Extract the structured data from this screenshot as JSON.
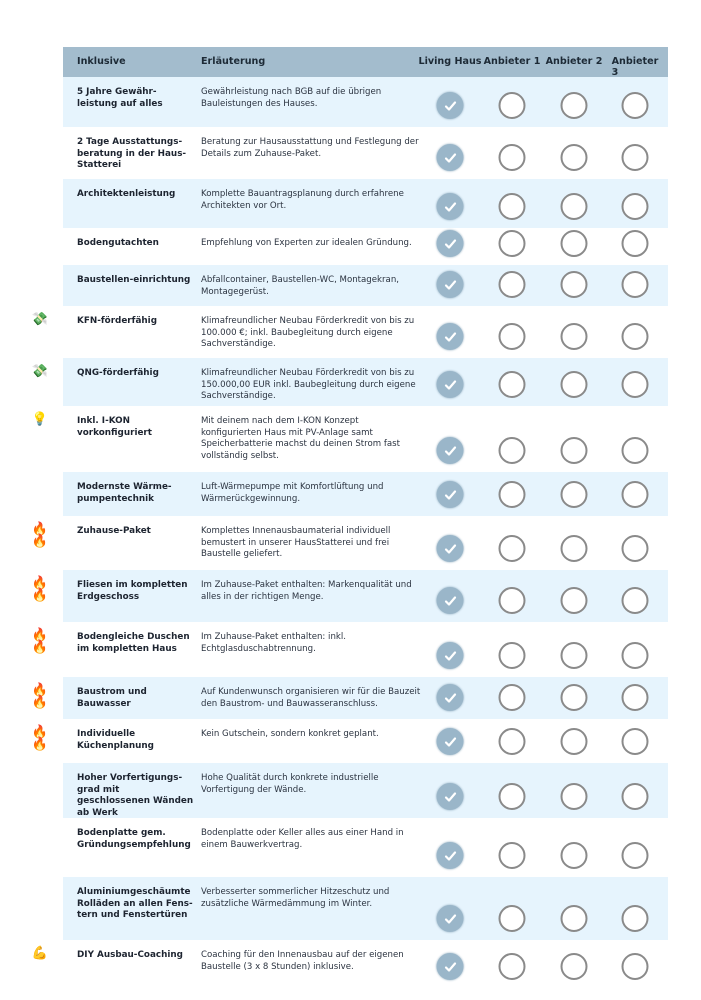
{
  "header": {
    "feature": "Inklusive",
    "description": "Erläuterung",
    "providers": [
      "Living Haus",
      "Anbieter 1",
      "Anbieter 2",
      "Anbieter 3"
    ]
  },
  "colors": {
    "header": "#a3bccd",
    "row_alt": "#e6f4fd",
    "check": "#9ab6c9"
  },
  "rows": [
    {
      "feature": "5 Jahre Gewähr-leistung auf alles",
      "description": "Gewährleistung nach BGB auf die übrigen Bauleistungen des Hauses.",
      "icon": "",
      "checks": [
        true,
        false,
        false,
        false
      ]
    },
    {
      "feature": "2 Tage Ausstattungs-beratung in der Haus-Statterei",
      "description": "Beratung zur Hausausstattung und Festlegung der Details zum Zuhause-Paket.",
      "icon": "",
      "checks": [
        true,
        false,
        false,
        false
      ]
    },
    {
      "feature": "Architektenleistung",
      "description": "Komplette Bauantragsplanung durch erfahrene Architekten vor Ort.",
      "icon": "",
      "checks": [
        true,
        false,
        false,
        false
      ]
    },
    {
      "feature": "Bodengutachten",
      "description": "Empfehlung von Experten zur idealen Gründung.",
      "icon": "",
      "checks": [
        true,
        false,
        false,
        false
      ]
    },
    {
      "feature": "Baustellen-einrichtung",
      "description": "Abfallcontainer, Baustellen-WC, Montagekran, Montagegerüst.",
      "icon": "",
      "checks": [
        true,
        false,
        false,
        false
      ]
    },
    {
      "feature": "KFN-förderfähig",
      "description": "Klimafreundlicher Neubau Förderkredit von bis zu 100.000 €; inkl. Baubegleitung durch eigene Sachverständige.",
      "icon": "money-icon",
      "checks": [
        true,
        false,
        false,
        false
      ]
    },
    {
      "feature": "QNG-förderfähig",
      "description": "Klimafreundlicher Neubau Förderkredit von bis zu 150.000,00 EUR inkl. Baubegleitung durch eigene Sachverständige.",
      "icon": "money-icon",
      "checks": [
        true,
        false,
        false,
        false
      ]
    },
    {
      "feature": "Inkl. I-KON vorkonfiguriert",
      "description": "Mit deinem nach dem I-KON Konzept konfigurierten Haus mit PV-Anlage samt Speicherbatterie machst du deinen Strom fast vollständig selbst.",
      "icon": "lightbulb-icon",
      "checks": [
        true,
        false,
        false,
        false
      ]
    },
    {
      "feature": "Modernste Wärme-pumpentechnik",
      "description": "Luft-Wärmepumpe mit Komfortlüftung und Wärmerückgewinnung.",
      "icon": "",
      "checks": [
        true,
        false,
        false,
        false
      ]
    },
    {
      "feature": "Zuhause-Paket",
      "description": "Komplettes Innenausbaumaterial individuell bemustert in unserer HausStatterei und frei Baustelle geliefert.",
      "icon": "fire-icon",
      "checks": [
        true,
        false,
        false,
        false
      ]
    },
    {
      "feature": "Fliesen im kompletten Erdgeschoss",
      "description": "Im Zuhause-Paket enthalten: Markenqualität und alles in der richtigen Menge.",
      "icon": "fire-icon",
      "checks": [
        true,
        false,
        false,
        false
      ]
    },
    {
      "feature": "Bodengleiche Duschen im kompletten Haus",
      "description": "Im Zuhause-Paket enthalten: inkl. Echtglasduschabtrennung.",
      "icon": "fire-icon",
      "checks": [
        true,
        false,
        false,
        false
      ]
    },
    {
      "feature": "Baustrom und Bauwasser",
      "description": "Auf Kundenwunsch organisieren wir für die Bauzeit den Baustrom- und Bauwasseranschluss.",
      "icon": "fire-icon",
      "checks": [
        true,
        false,
        false,
        false
      ]
    },
    {
      "feature": "Individuelle Küchenplanung",
      "description": "Kein Gutschein, sondern konkret geplant.",
      "icon": "fire-icon",
      "checks": [
        true,
        false,
        false,
        false
      ]
    },
    {
      "feature": "Hoher Vorfertigungs-grad mit geschlossenen Wänden ab Werk",
      "description": "Hohe Qualität durch konkrete industrielle Vorfertigung der Wände.",
      "icon": "",
      "checks": [
        true,
        false,
        false,
        false
      ]
    },
    {
      "feature": "Bodenplatte gem. Gründungsempfehlung",
      "description": "Bodenplatte oder Keller alles aus einer Hand in einem Bauwerkvertrag.",
      "icon": "",
      "checks": [
        true,
        false,
        false,
        false
      ]
    },
    {
      "feature": "Aluminiumgeschäumte Rolläden an allen Fens-tern und Fenstertüren",
      "description": "Verbesserter sommerlicher Hitzeschutz und zusätzliche Wärmedämmung im Winter.",
      "icon": "",
      "checks": [
        true,
        false,
        false,
        false
      ]
    },
    {
      "feature": "DIY Ausbau-Coaching",
      "description": "Coaching für den Innenausbau auf der eigenen Baustelle (3 x 8 Stunden) inklusive.",
      "icon": "flexed-arm-icon",
      "checks": [
        true,
        false,
        false,
        false
      ]
    }
  ]
}
